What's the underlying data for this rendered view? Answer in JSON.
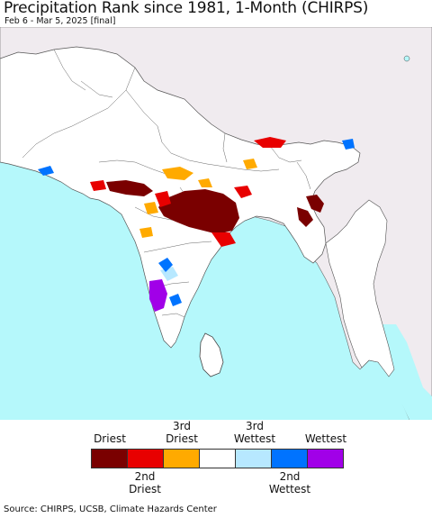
{
  "header": {
    "title": "Precipitation Rank since 1981, 1-Month (CHIRPS)",
    "subtitle": "Feb 6 - Mar 5, 2025 [final]"
  },
  "map": {
    "colors": {
      "ocean": "#b5f8fb",
      "land_outside": "#f0ebef",
      "land_region": "#ffffff",
      "borders": "#444444"
    }
  },
  "legend": {
    "top_labels": [
      "Driest",
      "3rd\nDriest",
      "3rd\nWettest",
      "Wettest"
    ],
    "bottom_labels": [
      "2nd\nDriest",
      "2nd\nWettest"
    ],
    "colors": [
      "#7a0000",
      "#e80000",
      "#ffaa00",
      "#ffffff",
      "#b7e8ff",
      "#0073ff",
      "#a100e8"
    ]
  },
  "footer": {
    "source": "Source: CHIRPS, UCSB, Climate Hazards Center"
  }
}
